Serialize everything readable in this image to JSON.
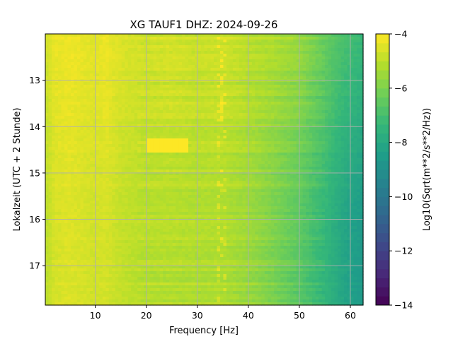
{
  "chart_data": {
    "type": "heatmap",
    "title": "XG TAUF1  DHZ: 2024-09-26",
    "xlabel": "Frequency [Hz]",
    "ylabel": "Lokalzeit (UTC + 2 Stunde)",
    "xlim": [
      0.2,
      62.5
    ],
    "ylim": [
      12.0,
      17.85
    ],
    "x_ticks": [
      "10",
      "20",
      "30",
      "40",
      "50",
      "60"
    ],
    "y_ticks": [
      "13",
      "14",
      "15",
      "16",
      "17"
    ],
    "grid": true,
    "colorbar": {
      "label": "Log10(Sqrt(m**2/s**2/Hz))",
      "range": [
        -14,
        -4
      ],
      "ticks": [
        "−4",
        "−6",
        "−8",
        "−10",
        "−12",
        "−14"
      ],
      "colormap": "viridis"
    },
    "spectrum_profile": {
      "frequency_hz": [
        0,
        2,
        5,
        10,
        12,
        15,
        20,
        25,
        30,
        35,
        40,
        45,
        50,
        55,
        58,
        60,
        62.5
      ],
      "level_hour_12": [
        -4.8,
        -4.3,
        -4.2,
        -4.4,
        -4.2,
        -4.5,
        -4.7,
        -4.6,
        -4.8,
        -4.7,
        -5.0,
        -5.2,
        -5.5,
        -6.3,
        -6.8,
        -7.0,
        -7.3
      ],
      "level_hour_16": [
        -5.1,
        -4.6,
        -4.5,
        -4.7,
        -4.6,
        -4.9,
        -5.1,
        -5.1,
        -5.2,
        -5.2,
        -5.5,
        -6.0,
        -6.6,
        -7.4,
        -8.0,
        -8.3,
        -8.6
      ]
    },
    "bright_band": {
      "hours": [
        14.25,
        14.55
      ],
      "frequency_hz": [
        20,
        28
      ],
      "level": -4.0
    }
  }
}
